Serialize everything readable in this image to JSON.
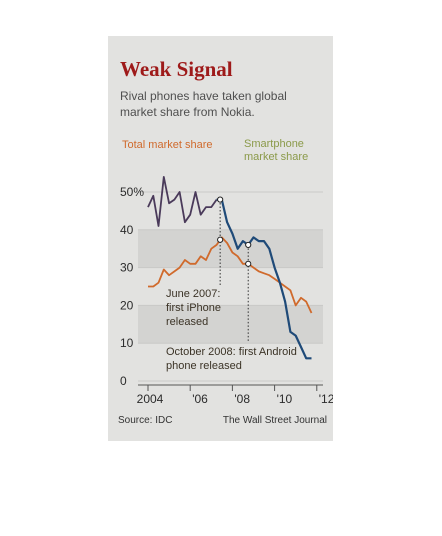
{
  "header": {
    "title": "Weak Signal",
    "subtitle": "Rival phones have taken global market share from Nokia."
  },
  "legend": {
    "total": "Total market share",
    "smartphone": "Smartphone market share"
  },
  "annotations": {
    "iphone": "June 2007: first iPhone released",
    "android": "October 2008: first Android phone released"
  },
  "footer": {
    "source": "Source: IDC",
    "credit": "The Wall Street Journal"
  },
  "colors": {
    "total": "#d06a2c",
    "smartphone_before": "#4a3a5a",
    "smartphone_after": "#1f4a78",
    "panel": "#e2e2e0"
  },
  "chart_data": {
    "type": "line",
    "title": "Weak Signal",
    "subtitle": "Rival phones have taken global market share from Nokia.",
    "xlabel": "",
    "ylabel": "",
    "x_tick_labels": [
      "2004",
      "'06",
      "'08",
      "'10",
      "'12"
    ],
    "x_tick_values": [
      2004,
      2006,
      2008,
      2010,
      2012
    ],
    "y_tick_labels": [
      "0",
      "10",
      "20",
      "30",
      "40",
      "50%"
    ],
    "y_tick_values": [
      0,
      10,
      20,
      30,
      40,
      50
    ],
    "xlim": [
      2004,
      2012.2
    ],
    "ylim": [
      0,
      55
    ],
    "grid": true,
    "series": [
      {
        "name": "Total market share",
        "x": [
          2004.0,
          2004.25,
          2004.5,
          2004.75,
          2005.0,
          2005.25,
          2005.5,
          2005.75,
          2006.0,
          2006.25,
          2006.5,
          2006.75,
          2007.0,
          2007.25,
          2007.5,
          2007.75,
          2008.0,
          2008.25,
          2008.5,
          2008.75,
          2009.0,
          2009.25,
          2009.5,
          2009.75,
          2010.0,
          2010.25,
          2010.5,
          2010.75,
          2011.0,
          2011.25,
          2011.5,
          2011.75
        ],
        "y": [
          25,
          25,
          26,
          29.5,
          28,
          29,
          30,
          32,
          31,
          31,
          33,
          32,
          35,
          36,
          38,
          36.5,
          34,
          33,
          31,
          31,
          30,
          29,
          28.5,
          28,
          27,
          26,
          25,
          24,
          20,
          22,
          21,
          18
        ]
      },
      {
        "name": "Smartphone market share",
        "x": [
          2004.0,
          2004.25,
          2004.5,
          2004.75,
          2005.0,
          2005.25,
          2005.5,
          2005.75,
          2006.0,
          2006.25,
          2006.5,
          2006.75,
          2007.0,
          2007.25,
          2007.5,
          2007.75,
          2008.0,
          2008.25,
          2008.5,
          2008.75,
          2009.0,
          2009.25,
          2009.5,
          2009.75,
          2010.0,
          2010.25,
          2010.5,
          2010.75,
          2011.0,
          2011.25,
          2011.5,
          2011.75
        ],
        "y": [
          46,
          49,
          41,
          54,
          47,
          48,
          50,
          42,
          44,
          50,
          44,
          46,
          46,
          48,
          48,
          42,
          39,
          35,
          37,
          36,
          38,
          37,
          37,
          35,
          30,
          26,
          21,
          13,
          12,
          9,
          6,
          6
        ]
      }
    ],
    "events": [
      {
        "label": "June 2007: first iPhone released",
        "x": 2007.42
      },
      {
        "label": "October 2008: first Android phone released",
        "x": 2008.75
      }
    ]
  }
}
